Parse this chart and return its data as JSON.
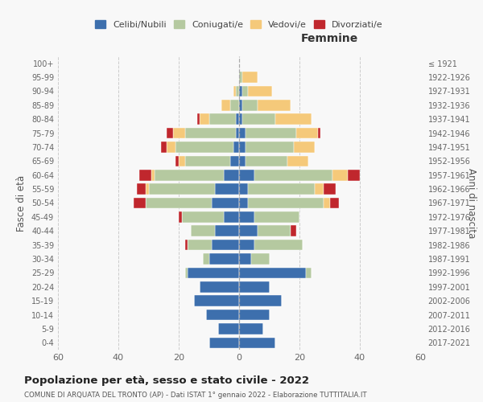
{
  "age_groups": [
    "0-4",
    "5-9",
    "10-14",
    "15-19",
    "20-24",
    "25-29",
    "30-34",
    "35-39",
    "40-44",
    "45-49",
    "50-54",
    "55-59",
    "60-64",
    "65-69",
    "70-74",
    "75-79",
    "80-84",
    "85-89",
    "90-94",
    "95-99",
    "100+"
  ],
  "birth_years": [
    "2017-2021",
    "2012-2016",
    "2007-2011",
    "2002-2006",
    "1997-2001",
    "1992-1996",
    "1987-1991",
    "1982-1986",
    "1977-1981",
    "1972-1976",
    "1967-1971",
    "1962-1966",
    "1957-1961",
    "1952-1956",
    "1947-1951",
    "1942-1946",
    "1937-1941",
    "1932-1936",
    "1927-1931",
    "1922-1926",
    "≤ 1921"
  ],
  "male": {
    "celibi": [
      10,
      7,
      11,
      15,
      13,
      17,
      10,
      9,
      8,
      5,
      9,
      8,
      5,
      3,
      2,
      1,
      1,
      0,
      0,
      0,
      0
    ],
    "coniugati": [
      0,
      0,
      0,
      0,
      0,
      1,
      2,
      8,
      8,
      14,
      22,
      22,
      23,
      15,
      19,
      17,
      9,
      3,
      1,
      0,
      0
    ],
    "vedovi": [
      0,
      0,
      0,
      0,
      0,
      0,
      0,
      0,
      0,
      0,
      0,
      1,
      1,
      2,
      3,
      4,
      3,
      3,
      1,
      0,
      0
    ],
    "divorziati": [
      0,
      0,
      0,
      0,
      0,
      0,
      0,
      1,
      0,
      1,
      4,
      3,
      4,
      1,
      2,
      2,
      1,
      0,
      0,
      0,
      0
    ]
  },
  "female": {
    "nubili": [
      12,
      8,
      10,
      14,
      10,
      22,
      4,
      5,
      6,
      5,
      3,
      3,
      5,
      2,
      2,
      2,
      1,
      1,
      1,
      0,
      0
    ],
    "coniugate": [
      0,
      0,
      0,
      0,
      0,
      2,
      6,
      16,
      11,
      15,
      25,
      22,
      26,
      14,
      16,
      17,
      11,
      5,
      2,
      1,
      0
    ],
    "vedove": [
      0,
      0,
      0,
      0,
      0,
      0,
      0,
      0,
      0,
      0,
      2,
      3,
      5,
      7,
      7,
      7,
      12,
      11,
      8,
      5,
      0
    ],
    "divorziate": [
      0,
      0,
      0,
      0,
      0,
      0,
      0,
      0,
      2,
      0,
      3,
      4,
      4,
      0,
      0,
      1,
      0,
      0,
      0,
      0,
      0
    ]
  },
  "colors": {
    "celibi": "#3d6fad",
    "coniugati": "#b5c9a0",
    "vedovi": "#f5c97a",
    "divorziati": "#c0272d"
  },
  "xlim": 60,
  "title": "Popolazione per età, sesso e stato civile - 2022",
  "subtitle": "COMUNE DI ARQUATA DEL TRONTO (AP) - Dati ISTAT 1° gennaio 2022 - Elaborazione TUTTITALIA.IT",
  "ylabel_left": "Fasce di età",
  "ylabel_right": "Anni di nascita",
  "xlabel_right": "Femmine",
  "legend_labels": [
    "Celibi/Nubili",
    "Coniugati/e",
    "Vedovi/e",
    "Divorziati/e"
  ],
  "bg_color": "#f8f8f8"
}
